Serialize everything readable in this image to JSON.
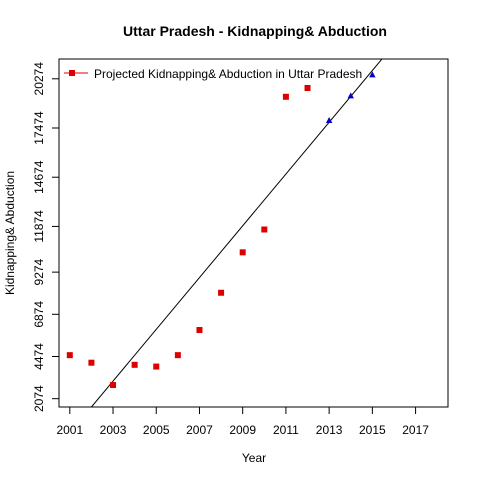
{
  "chart_data": {
    "type": "scatter",
    "title": "Uttar Pradesh  -  Kidnapping& Abduction",
    "xlabel": "Year",
    "ylabel": "Kidnapping& Abduction",
    "xlim": [
      2000.5,
      2018.5
    ],
    "ylim": [
      1600,
      21400
    ],
    "x_ticks": [
      2001,
      2003,
      2005,
      2007,
      2009,
      2011,
      2013,
      2015,
      2017
    ],
    "x_tick_labels": [
      "2001",
      "2003",
      "2005",
      "2007",
      "2009",
      "2011",
      "2013",
      "2015",
      "2017"
    ],
    "y_ticks": [
      2074,
      4474,
      6874,
      9274,
      11874,
      14674,
      17474,
      20274
    ],
    "y_tick_labels": [
      "2074",
      "4474",
      "6874",
      "9274",
      "11874",
      "14674",
      "17474",
      "20274"
    ],
    "grid": false,
    "legend": {
      "position": "top-left",
      "entries": [
        "Projected  Kidnapping& Abduction  in  Uttar Pradesh"
      ]
    },
    "series": [
      {
        "name": "Projected  Kidnapping& Abduction  in  Uttar Pradesh",
        "marker": "square",
        "color": "#dd0000",
        "x": [
          2001,
          2002,
          2003,
          2004,
          2005,
          2006,
          2007,
          2008,
          2009,
          2010,
          2011,
          2012
        ],
        "y": [
          4550,
          4120,
          2850,
          4000,
          3900,
          4550,
          5980,
          8100,
          10400,
          11700,
          19250,
          19750
        ]
      },
      {
        "marker": "triangle",
        "color": "#0000cc",
        "x": [
          2013,
          2014,
          2015
        ],
        "y": [
          17900,
          19300,
          20500
        ]
      }
    ],
    "trend_line": {
      "color": "#000000",
      "from": [
        2002,
        1600
      ],
      "to": [
        2018.5,
        25900
      ]
    }
  }
}
